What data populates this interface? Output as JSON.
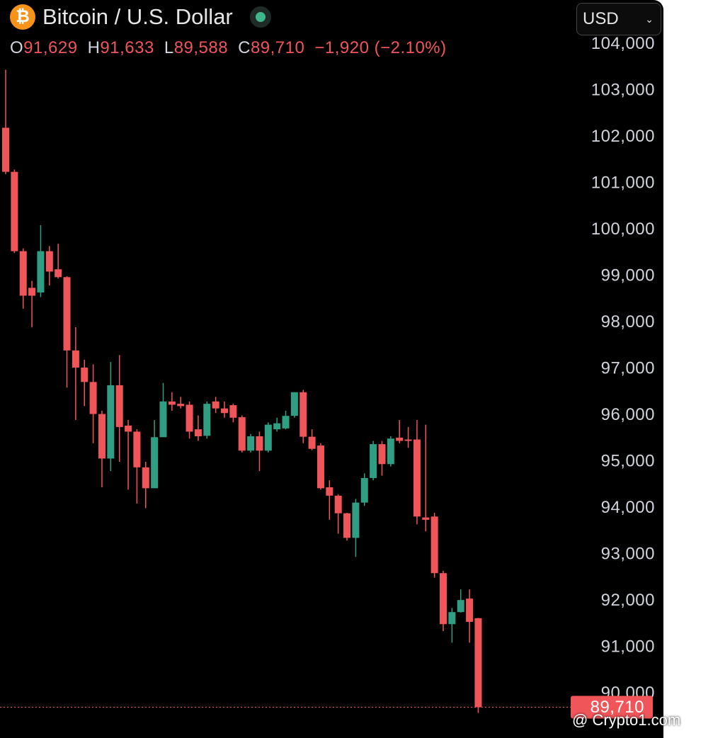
{
  "header": {
    "title": "Bitcoin / U.S. Dollar",
    "currency": "USD",
    "ohlc": [
      {
        "key": "O",
        "value": "91,629"
      },
      {
        "key": "H",
        "value": "91,633"
      },
      {
        "key": "L",
        "value": "89,588"
      },
      {
        "key": "C",
        "value": "89,710"
      }
    ],
    "change": "−1,920 (−2.10%)"
  },
  "watermark": "@ Crypto1.com",
  "chart_data": {
    "type": "candlestick",
    "open": [
      102200,
      101250,
      99540,
      98750,
      98650,
      99540,
      99150,
      98980,
      97400,
      97030,
      96720,
      96030,
      95070,
      96650,
      95780,
      95650,
      94880,
      94430,
      95530,
      96300,
      96250,
      96230,
      95700,
      95560,
      96300,
      96150,
      96220,
      95960,
      95240,
      95550,
      95240,
      95700,
      95720,
      95990,
      96500,
      95540,
      95350,
      94450,
      94270,
      93890,
      93360,
      94120,
      94650,
      95380,
      94950,
      95520,
      95480,
      95480,
      93800,
      93820,
      92600,
      91500,
      91760,
      92050,
      91629
    ],
    "high": [
      103450,
      101300,
      99600,
      98900,
      100100,
      99650,
      99700,
      99000,
      97900,
      97200,
      97100,
      96100,
      97150,
      97300,
      95900,
      95700,
      95000,
      95900,
      96700,
      96500,
      96400,
      96300,
      96000,
      96300,
      96400,
      96300,
      96250,
      96000,
      95600,
      95650,
      95850,
      95950,
      96100,
      96500,
      96550,
      95700,
      95400,
      94600,
      94300,
      93900,
      94200,
      94750,
      95450,
      95450,
      95550,
      95900,
      95750,
      95900,
      95800,
      93900,
      92650,
      91850,
      92250,
      92250,
      91633
    ],
    "low": [
      101200,
      99500,
      98300,
      97900,
      98550,
      98800,
      98950,
      96600,
      95900,
      96200,
      95400,
      94450,
      94800,
      95000,
      94400,
      94100,
      94000,
      94430,
      95530,
      96100,
      96150,
      95500,
      95450,
      95500,
      96050,
      95950,
      95850,
      95200,
      95200,
      94800,
      95200,
      95650,
      95700,
      95950,
      95400,
      95250,
      94400,
      93750,
      93450,
      93300,
      92950,
      94050,
      94600,
      94700,
      94900,
      95400,
      95300,
      93650,
      93500,
      92500,
      91350,
      91100,
      91750,
      91100,
      89588
    ],
    "close": [
      101250,
      99540,
      98580,
      98580,
      99540,
      99100,
      98980,
      97400,
      97030,
      96720,
      96030,
      95070,
      96650,
      95750,
      95650,
      94880,
      94430,
      95530,
      96300,
      96230,
      96200,
      95650,
      95550,
      96250,
      96150,
      96050,
      95950,
      95240,
      95550,
      95240,
      95800,
      95830,
      95990,
      96500,
      95540,
      95280,
      94430,
      94270,
      93890,
      93360,
      94120,
      94650,
      95380,
      94950,
      95500,
      95450,
      95450,
      93820,
      93750,
      92600,
      91500,
      91760,
      92020,
      91550,
      89710
    ],
    "up_color": "#2f9e82",
    "down_color": "#f0555a",
    "ylim": [
      89000,
      105000
    ],
    "yticks": [
      {
        "value": 90000,
        "label": "90,000"
      },
      {
        "value": 91000,
        "label": "91,000"
      },
      {
        "value": 92000,
        "label": "92,000"
      },
      {
        "value": 93000,
        "label": "93,000"
      },
      {
        "value": 94000,
        "label": "94,000"
      },
      {
        "value": 95000,
        "label": "95,000"
      },
      {
        "value": 96000,
        "label": "96,000"
      },
      {
        "value": 97000,
        "label": "97,000"
      },
      {
        "value": 98000,
        "label": "98,000"
      },
      {
        "value": 99000,
        "label": "99,000"
      },
      {
        "value": 100000,
        "label": "100,000"
      },
      {
        "value": 101000,
        "label": "101,000"
      },
      {
        "value": 102000,
        "label": "102,000"
      },
      {
        "value": 103000,
        "label": "103,000"
      },
      {
        "value": 104000,
        "label": "104,000"
      }
    ],
    "last_price": {
      "value": 89710,
      "label": "89,710"
    }
  }
}
